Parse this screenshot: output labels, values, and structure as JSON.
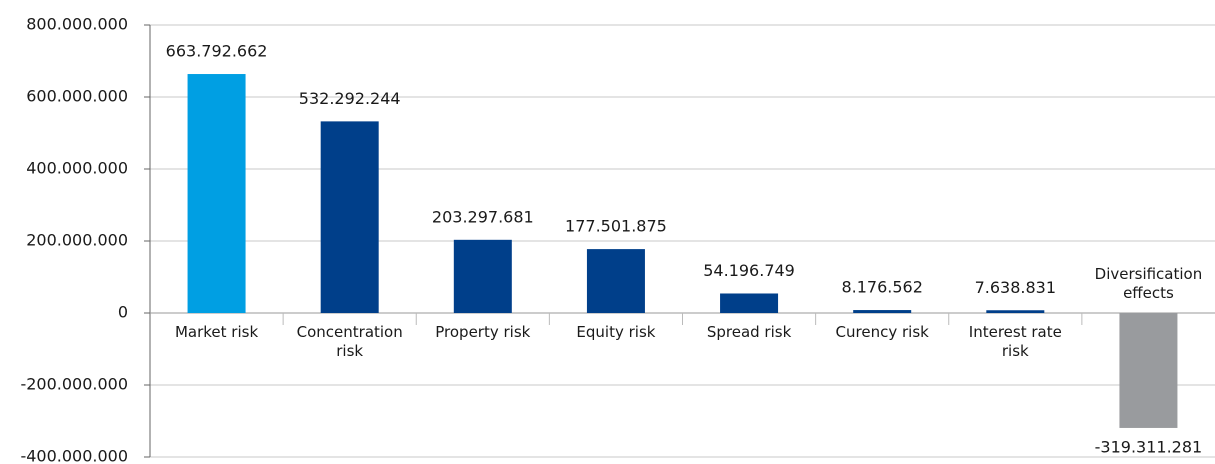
{
  "chart_data": {
    "type": "bar",
    "categories": [
      "Market risk",
      "Concentration risk",
      "Property risk",
      "Equity risk",
      "Spread risk",
      "Curency risk",
      "Interest rate risk",
      "Diversification effects"
    ],
    "values": [
      663792662,
      532292244,
      203297681,
      177501875,
      54196749,
      8176562,
      7638831,
      -319311281
    ],
    "value_labels": [
      "663.792.662",
      "532.292.244",
      "203.297.681",
      "177.501.875",
      "54.196.749",
      "8.176.562",
      "7.638.831",
      "-319.311.281"
    ],
    "colors": [
      "#009fe3",
      "#003f8a",
      "#003f8a",
      "#003f8a",
      "#003f8a",
      "#003f8a",
      "#003f8a",
      "#999b9e"
    ],
    "ylim": [
      -400000000,
      800000000
    ],
    "yticks": [
      {
        "value": -400000000,
        "label": "-400.000.000"
      },
      {
        "value": -200000000,
        "label": "-200.000.000"
      },
      {
        "value": 0,
        "label": "0"
      },
      {
        "value": 200000000,
        "label": "200.000.000"
      },
      {
        "value": 400000000,
        "label": "400.000.000"
      },
      {
        "value": 600000000,
        "label": "600.000.000"
      },
      {
        "value": 800000000,
        "label": "800.000.000"
      }
    ],
    "grid": true
  }
}
